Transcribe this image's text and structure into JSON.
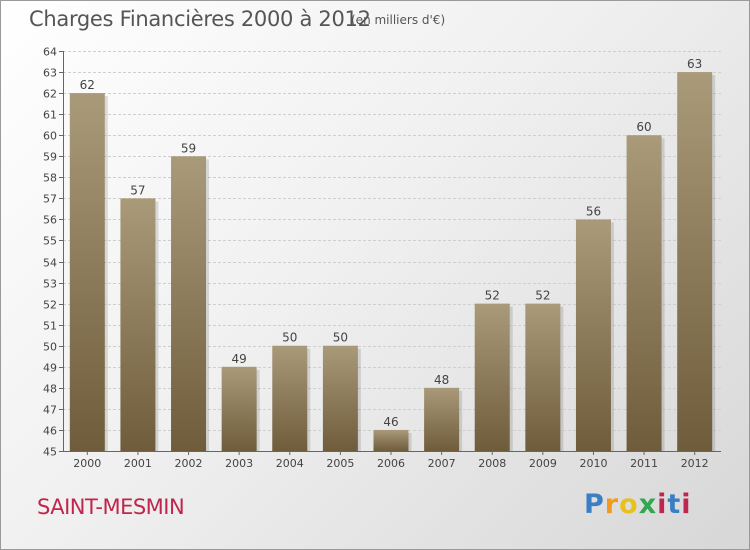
{
  "chart_data": {
    "type": "bar",
    "title": "Charges Financières 2000 à 2012",
    "subtitle": "(en milliers d'€)",
    "categories": [
      "2000",
      "2001",
      "2002",
      "2003",
      "2004",
      "2005",
      "2006",
      "2007",
      "2008",
      "2009",
      "2010",
      "2011",
      "2012"
    ],
    "values": [
      62,
      57,
      59,
      49,
      50,
      50,
      46,
      48,
      52,
      52,
      56,
      60,
      63
    ],
    "ylim": [
      45,
      64
    ],
    "yticks": [
      45,
      46,
      47,
      48,
      49,
      50,
      51,
      52,
      53,
      54,
      55,
      56,
      57,
      58,
      59,
      60,
      61,
      62,
      63,
      64
    ],
    "grid": true,
    "xlabel": "",
    "ylabel": ""
  },
  "footer": {
    "place": "SAINT-MESMIN",
    "logo": "Proxiti"
  },
  "colors": {
    "bar_top": "#a99a79",
    "bar_bottom": "#6f5c3b",
    "grid": "#cfcfcf",
    "place": "#c0264d",
    "logo_p": "#3a7fc4",
    "logo_r": "#f39a1c",
    "logo_o": "#e8c21a",
    "logo_x": "#2fa84f",
    "logo_i": "#c0264d",
    "logo_t": "#3a7fc4"
  }
}
